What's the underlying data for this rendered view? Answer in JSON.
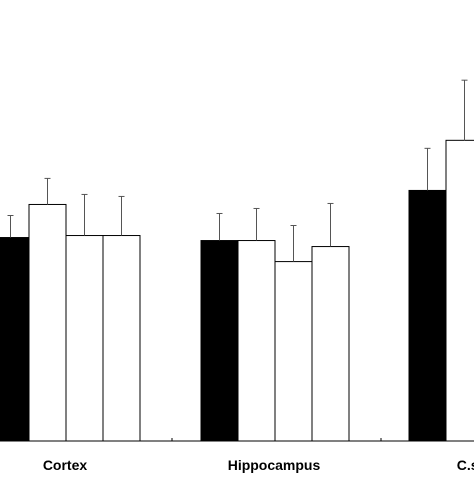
{
  "chart_data": {
    "type": "bar",
    "categories": [
      "Cortex",
      "Hippocampus",
      "C.st"
    ],
    "series": [
      {
        "fill": "#000000",
        "values": [
          203,
          200,
          250
        ],
        "errors": [
          22,
          27,
          42
        ]
      },
      {
        "fill": "#ffffff",
        "values": [
          236,
          200,
          300
        ],
        "errors": [
          26,
          32,
          60
        ]
      },
      {
        "fill": "#ffffff",
        "values": [
          205,
          179,
          null
        ],
        "errors": [
          41,
          36,
          null
        ]
      },
      {
        "fill": "#ffffff",
        "values": [
          205,
          194,
          null
        ],
        "errors": [
          39,
          43,
          null
        ]
      }
    ],
    "ylim": [
      0,
      440
    ],
    "axis_color": "#000000",
    "bar_stroke": "#000000",
    "error_bar_color": "#555555",
    "grid": false,
    "legend": "none"
  }
}
